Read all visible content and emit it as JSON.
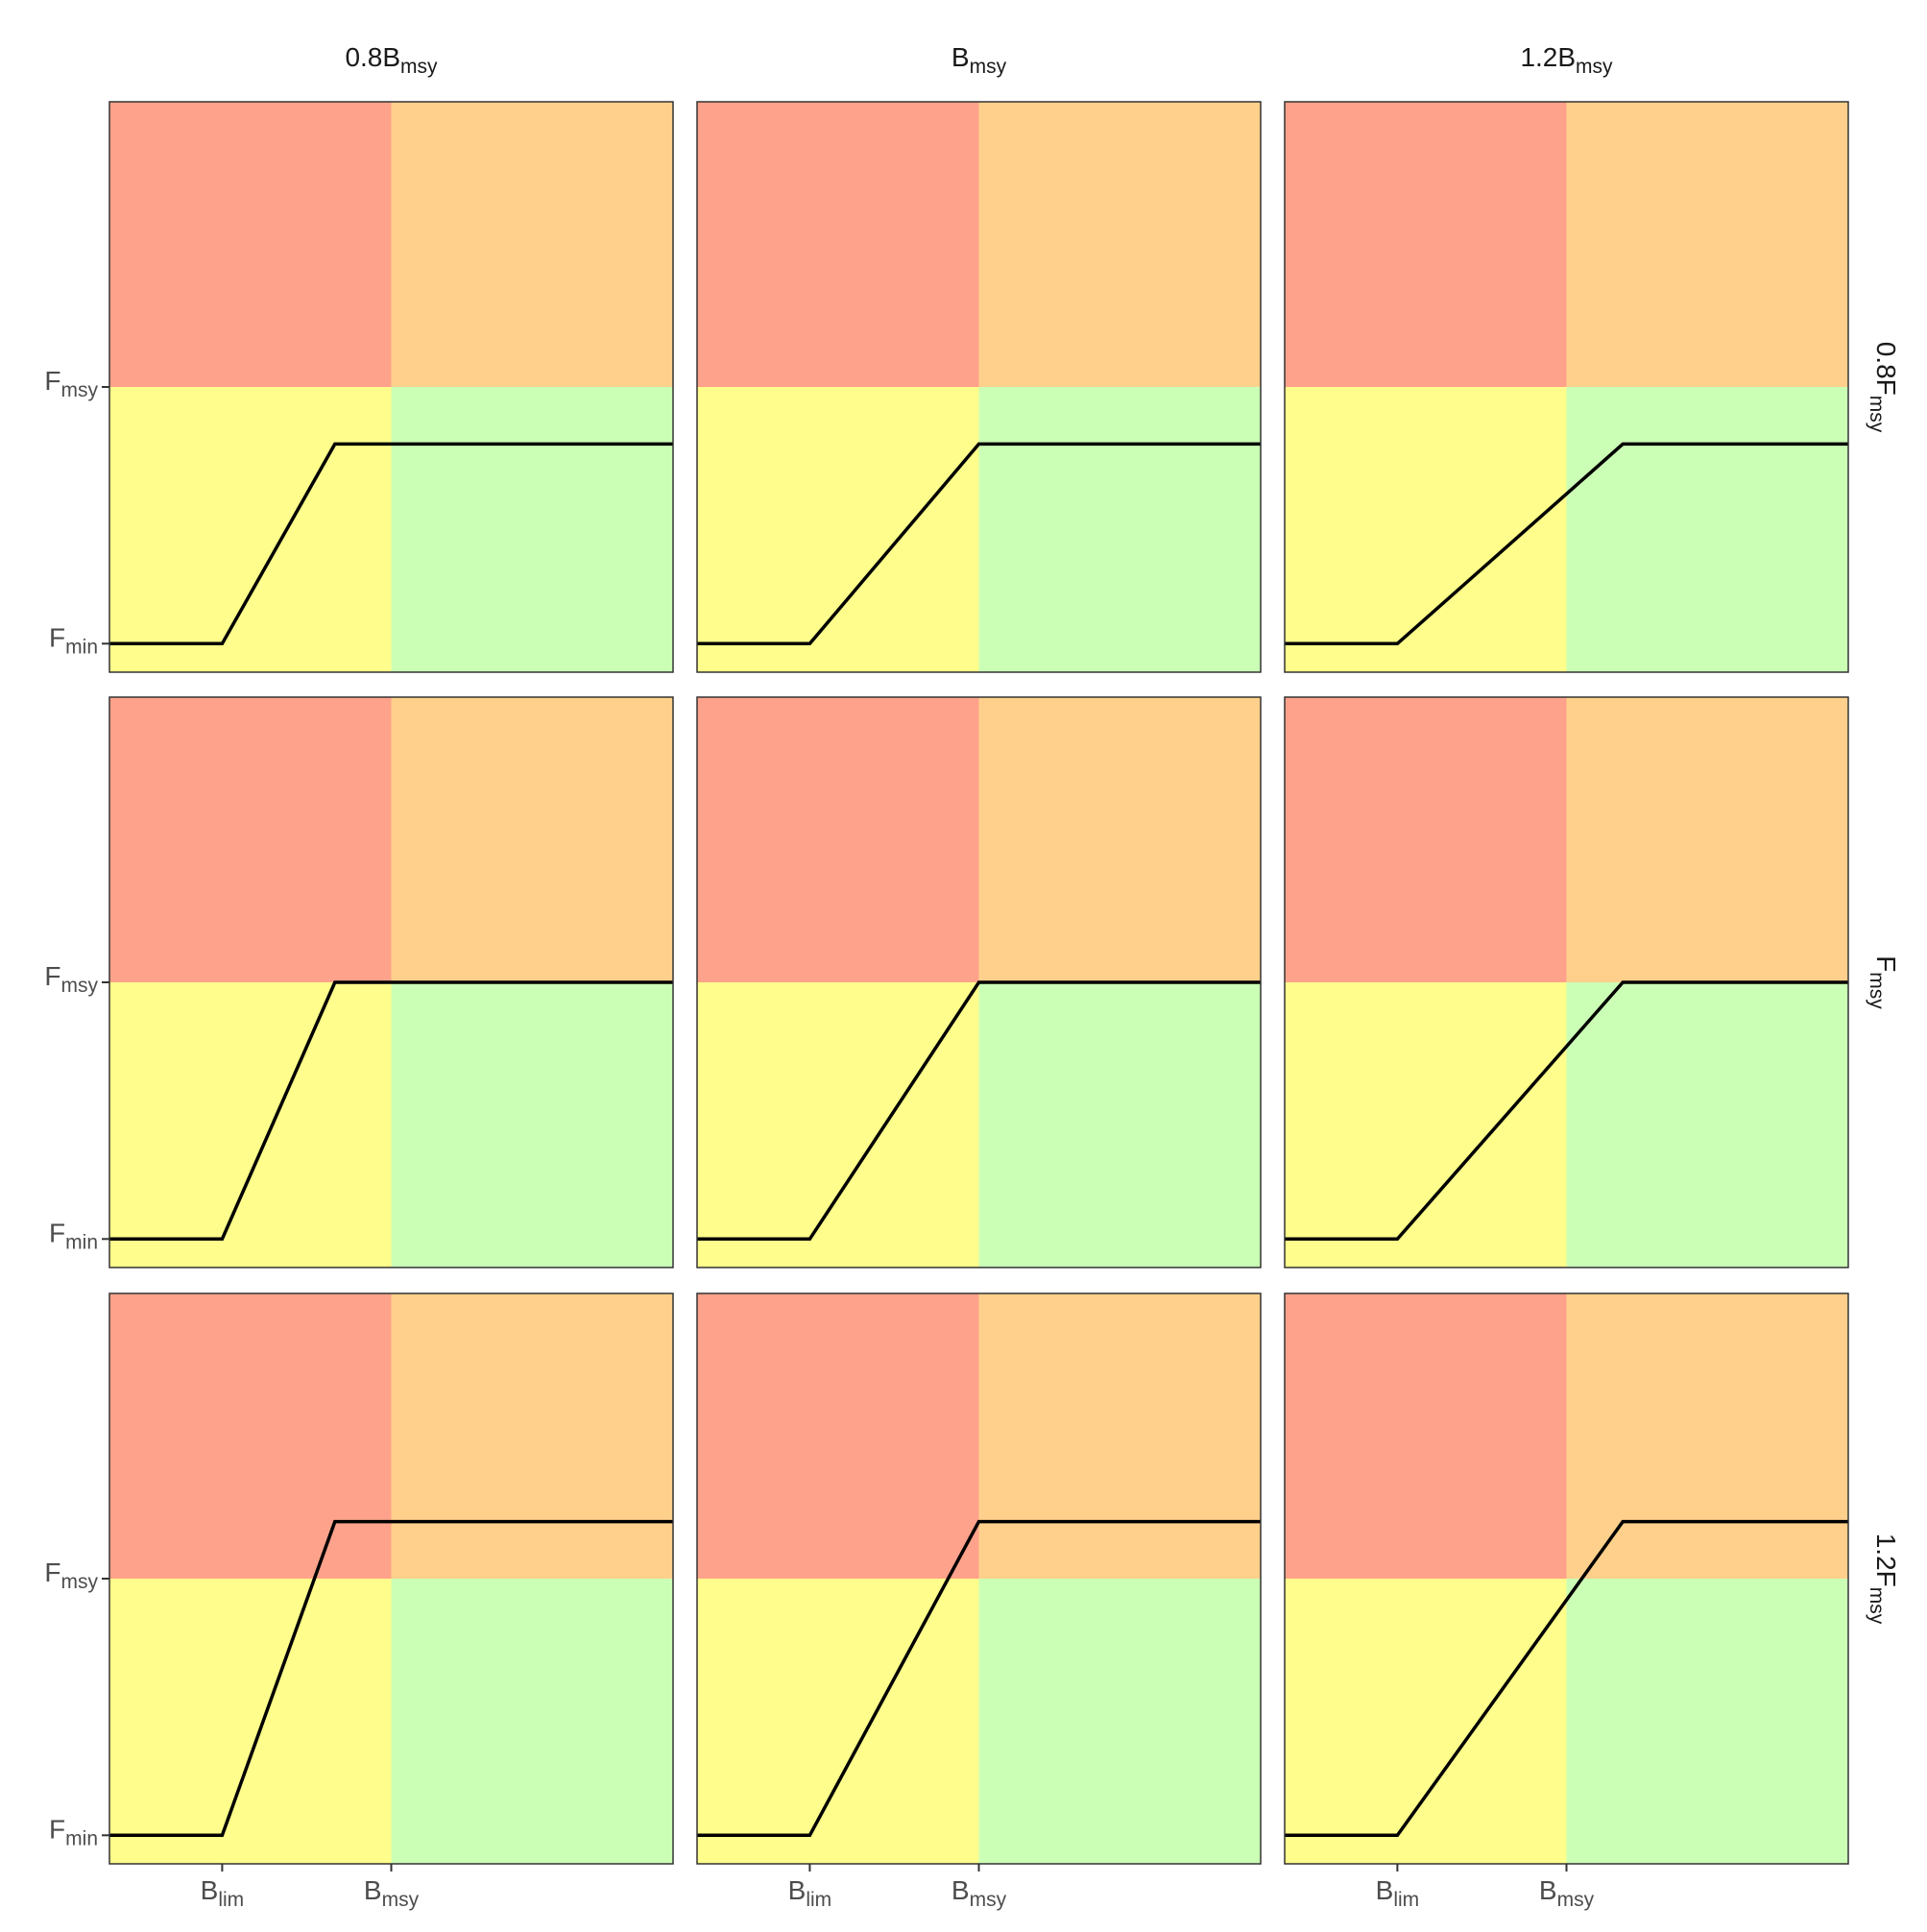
{
  "chart_data": {
    "type": "line",
    "facet_cols": [
      [
        "0.8B",
        "msy"
      ],
      [
        "B",
        "msy"
      ],
      [
        "1.2B",
        "msy"
      ]
    ],
    "facet_rows": [
      [
        "0.8F",
        "msy"
      ],
      [
        "F",
        "msy"
      ],
      [
        "1.2F",
        "msy"
      ]
    ],
    "xlim": [
      0,
      2
    ],
    "ylim": [
      0,
      2
    ],
    "xticks": [
      {
        "value": 0.4,
        "label": [
          "B",
          "lim"
        ]
      },
      {
        "value": 1,
        "label": [
          "B",
          "msy"
        ]
      }
    ],
    "yticks": [
      {
        "value": 0.1,
        "label": [
          "F",
          "min"
        ]
      },
      {
        "value": 1,
        "label": [
          "F",
          "msy"
        ]
      }
    ],
    "zone_colors": {
      "top_left": "#FFA28B",
      "top_right": "#FFD08B",
      "bottom_left": "#FFFD8B",
      "bottom_right": "#CCFFB6"
    },
    "line_color": "#000000",
    "panels": [
      {
        "x": [
          0,
          0.4,
          0.8,
          2
        ],
        "values": [
          0.1,
          0.1,
          0.8,
          0.8
        ]
      },
      {
        "x": [
          0,
          0.4,
          1,
          2
        ],
        "values": [
          0.1,
          0.1,
          0.8,
          0.8
        ]
      },
      {
        "x": [
          0,
          0.4,
          1.2,
          2
        ],
        "values": [
          0.1,
          0.1,
          0.8,
          0.8
        ]
      },
      {
        "x": [
          0,
          0.4,
          0.8,
          2
        ],
        "values": [
          0.1,
          0.1,
          1,
          1
        ]
      },
      {
        "x": [
          0,
          0.4,
          1,
          2
        ],
        "values": [
          0.1,
          0.1,
          1,
          1
        ]
      },
      {
        "x": [
          0,
          0.4,
          1.2,
          2
        ],
        "values": [
          0.1,
          0.1,
          1,
          1
        ]
      },
      {
        "x": [
          0,
          0.4,
          0.8,
          2
        ],
        "values": [
          0.1,
          0.1,
          1.2,
          1.2
        ]
      },
      {
        "x": [
          0,
          0.4,
          1,
          2
        ],
        "values": [
          0.1,
          0.1,
          1.2,
          1.2
        ]
      },
      {
        "x": [
          0,
          0.4,
          1.2,
          2
        ],
        "values": [
          0.1,
          0.1,
          1.2,
          1.2
        ]
      }
    ]
  }
}
